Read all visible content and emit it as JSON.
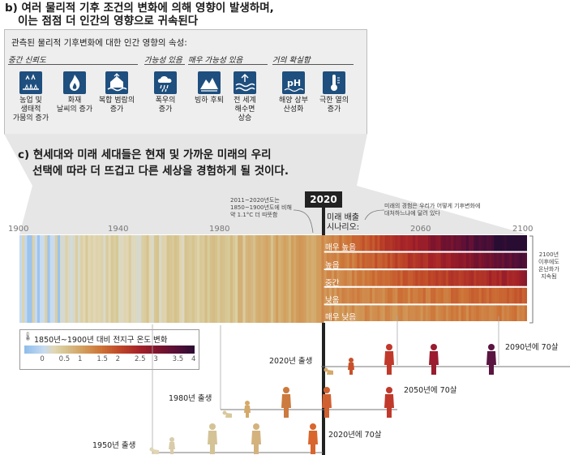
{
  "section_b": {
    "heading_line1": "b) 여러 물리적 기후 조건의 변화에 의해 영향이 발생하며,",
    "heading_line2": "이는 점점 더 인간의 영향으로 귀속된다",
    "panel_title": "관측된 물리적 기후변화에 대한 인간 영향의 속성:",
    "categories": [
      {
        "label": "중간 신뢰도"
      },
      {
        "label": "가능성 있음"
      },
      {
        "label": "매우 가능성 있음"
      },
      {
        "label": "거의 확실함"
      }
    ],
    "impacts": [
      {
        "icon": "drought-crop-icon",
        "label1": "농업 및",
        "label2": "생태적",
        "label3": "가뭄의 증가"
      },
      {
        "icon": "fire-icon",
        "label1": "화재",
        "label2": "날씨의 증가",
        "label3": ""
      },
      {
        "icon": "flood-house-icon",
        "label1": "복합 범람의",
        "label2": "증가",
        "label3": ""
      },
      {
        "icon": "heavy-rain-icon",
        "label1": "폭우의",
        "label2": "증가",
        "label3": ""
      },
      {
        "icon": "glacier-retreat-icon",
        "label1": "빙하 후퇴",
        "label2": "",
        "label3": ""
      },
      {
        "icon": "sea-level-icon",
        "label1": "전 세계",
        "label2": "해수면",
        "label3": "상승"
      },
      {
        "icon": "ph-icon",
        "label1": "해양 상부",
        "label2": "산성화",
        "label3": ""
      },
      {
        "icon": "thermometer-icon",
        "label1": "극한 열의",
        "label2": "증가",
        "label3": ""
      }
    ]
  },
  "section_c": {
    "heading_line1": "c) 현세대와 미래 세대들은 현재 및 가까운 미래의 우리",
    "heading_line2": "선택에 따라 더 뜨겁고 다른 세상을 경험하게 될 것이다."
  },
  "timeline": {
    "marker_year": "2020",
    "ticks": [
      "1900",
      "1940",
      "1980",
      "2060",
      "2100"
    ],
    "note_2011": [
      "2011~2020년도는",
      "1850~1900년도에 비해",
      "약 1.1°C 더 따뜻함"
    ],
    "future_title1": "미래 배출",
    "future_title2": "시나리오:",
    "future_note": [
      "미래의 경험은 우리가 어떻게 기후변화에",
      "대처하느냐에 달려 있다"
    ],
    "right_note": [
      "2100년",
      "이후에도",
      "온난화가",
      "지속됨"
    ]
  },
  "chart_data": {
    "type": "heatmap",
    "x_range": [
      1900,
      2100
    ],
    "observed_range": [
      1900,
      2020
    ],
    "color_scale": {
      "min": -0.5,
      "max": 4,
      "ticks": [
        "0",
        "0.5",
        "1",
        "1.5",
        "2",
        "2.5",
        "3",
        "3.5",
        "4"
      ]
    },
    "scenarios": [
      {
        "name": "매우 높음",
        "color_2100": "#2a0f3a"
      },
      {
        "name": "높음",
        "color_2100": "#8a1a2a"
      },
      {
        "name": "중간",
        "color_2100": "#b83420"
      },
      {
        "name": "낮음",
        "color_2100": "#c85a28"
      },
      {
        "name": "매우 낮음",
        "color_2100": "#cf7436"
      }
    ]
  },
  "legend": {
    "title": "1850년~1900년 대비 전지구 온도 변화"
  },
  "generations": {
    "born_1950": "1950년 출생",
    "born_1980": "1980년 출생",
    "born_2020": "2020년 출생",
    "age70_2020": "2020년에 70살",
    "age70_2050": "2050년에 70살",
    "age70_2090": "2090년에 70살"
  }
}
